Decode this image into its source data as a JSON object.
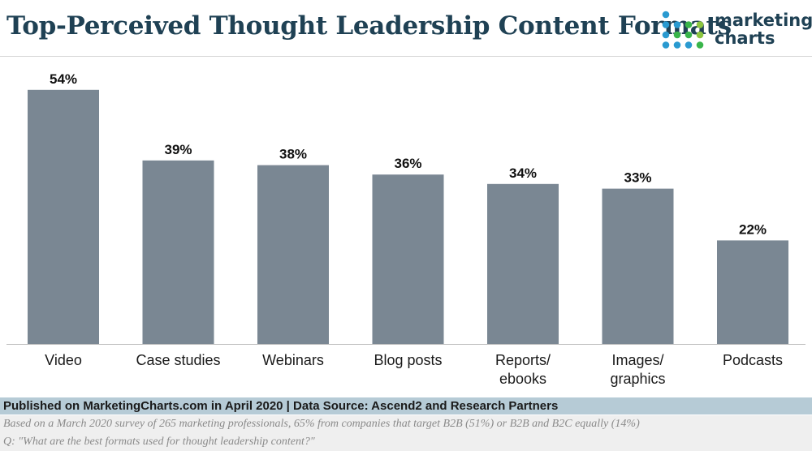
{
  "header": {
    "title": "Top-Perceived Thought Leadership Content Formats"
  },
  "logo": {
    "line1": "marketing",
    "line2": "charts",
    "colors": [
      "#2a9ad0",
      "#39b54a",
      "#8cc63f",
      "#1f4154"
    ]
  },
  "chart_data": {
    "type": "bar",
    "title": "Top-Perceived Thought Leadership Content Formats",
    "categories": [
      "Video",
      "Case studies",
      "Webinars",
      "Blog posts",
      "Reports/\nebooks",
      "Images/\ngraphics",
      "Podcasts"
    ],
    "values": [
      54,
      39,
      38,
      36,
      34,
      33,
      22
    ],
    "value_labels": [
      "54%",
      "39%",
      "38%",
      "36%",
      "34%",
      "33%",
      "22%"
    ],
    "unit": "%",
    "ylim": [
      0,
      58
    ],
    "bar_color": "#7a8793",
    "grid": false,
    "legend": "none"
  },
  "footer": {
    "published": "Published on MarketingCharts.com in April 2020 | Data Source: Ascend2 and Research Partners",
    "note": "Based on a March 2020 survey of 265 marketing professionals, 65% from companies that target B2B (51%) or B2B and B2C equally (14%)",
    "question": "Q: \"What are the best formats used for thought leadership content?\""
  }
}
